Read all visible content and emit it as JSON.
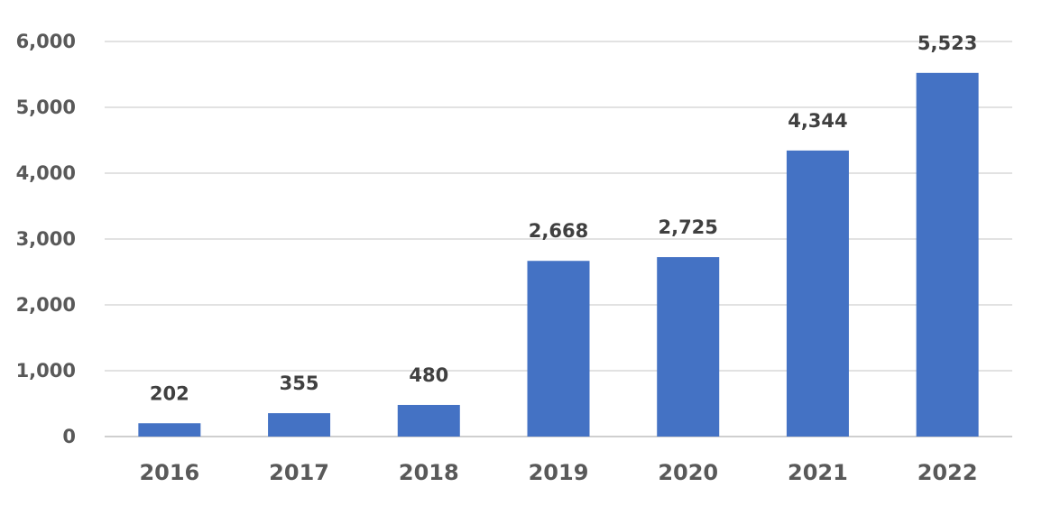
{
  "chart_data": {
    "type": "bar",
    "categories": [
      "2016",
      "2017",
      "2018",
      "2019",
      "2020",
      "2021",
      "2022"
    ],
    "values": [
      202,
      355,
      480,
      2668,
      2725,
      4344,
      5523
    ],
    "data_labels": [
      "202",
      "355",
      "480",
      "2,668",
      "2,725",
      "4,344",
      "5,523"
    ],
    "y_ticks": [
      0,
      1000,
      2000,
      3000,
      4000,
      5000,
      6000
    ],
    "y_tick_labels": [
      "0",
      "1,000",
      "2,000",
      "3,000",
      "4,000",
      "5,000",
      "6,000"
    ],
    "ylim": [
      0,
      6000
    ],
    "title": "",
    "xlabel": "",
    "ylabel": "",
    "grid": true,
    "legend": "none",
    "bar_color": "#4472C4"
  }
}
